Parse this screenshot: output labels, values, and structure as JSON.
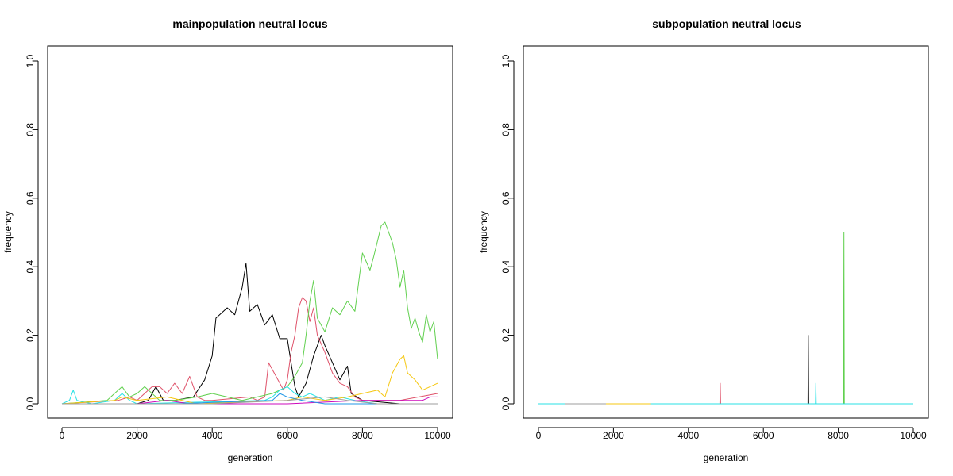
{
  "chart_data": [
    {
      "type": "line",
      "title": "mainpopulation neutral locus",
      "xlabel": "generation",
      "ylabel": "frequency",
      "xlim": [
        0,
        10000
      ],
      "ylim": [
        0,
        1
      ],
      "x_ticks": [
        0,
        2000,
        4000,
        6000,
        8000,
        10000
      ],
      "y_ticks": [
        0.0,
        0.2,
        0.4,
        0.6,
        0.8,
        1.0
      ],
      "grid": false,
      "series": [
        {
          "color": "#000000",
          "points": [
            [
              0,
              0
            ],
            [
              2000,
              0
            ],
            [
              2300,
              0.01
            ],
            [
              2500,
              0.05
            ],
            [
              2700,
              0.01
            ],
            [
              3000,
              0.01
            ],
            [
              3500,
              0.02
            ],
            [
              3800,
              0.07
            ],
            [
              4000,
              0.14
            ],
            [
              4100,
              0.25
            ],
            [
              4400,
              0.28
            ],
            [
              4600,
              0.26
            ],
            [
              4700,
              0.3
            ],
            [
              4800,
              0.34
            ],
            [
              4900,
              0.41
            ],
            [
              5000,
              0.27
            ],
            [
              5200,
              0.29
            ],
            [
              5400,
              0.23
            ],
            [
              5600,
              0.26
            ],
            [
              5800,
              0.19
            ],
            [
              6000,
              0.19
            ],
            [
              6100,
              0.12
            ],
            [
              6200,
              0.05
            ],
            [
              6300,
              0.02
            ],
            [
              6500,
              0.06
            ],
            [
              6700,
              0.14
            ],
            [
              6900,
              0.2
            ],
            [
              7000,
              0.17
            ],
            [
              7200,
              0.12
            ],
            [
              7400,
              0.07
            ],
            [
              7600,
              0.11
            ],
            [
              7700,
              0.03
            ],
            [
              8000,
              0.01
            ],
            [
              9000,
              0.0
            ],
            [
              10000,
              0.0
            ]
          ]
        },
        {
          "color": "#DF536B",
          "points": [
            [
              0,
              0
            ],
            [
              1500,
              0.01
            ],
            [
              1800,
              0.02
            ],
            [
              2000,
              0.01
            ],
            [
              2200,
              0.03
            ],
            [
              2400,
              0.05
            ],
            [
              2600,
              0.05
            ],
            [
              2800,
              0.03
            ],
            [
              3000,
              0.06
            ],
            [
              3200,
              0.03
            ],
            [
              3400,
              0.08
            ],
            [
              3600,
              0.02
            ],
            [
              3800,
              0.01
            ],
            [
              4000,
              0.01
            ],
            [
              5000,
              0.02
            ],
            [
              5200,
              0.01
            ],
            [
              5400,
              0.02
            ],
            [
              5500,
              0.12
            ],
            [
              5700,
              0.08
            ],
            [
              5900,
              0.04
            ],
            [
              6000,
              0.07
            ],
            [
              6100,
              0.15
            ],
            [
              6200,
              0.2
            ],
            [
              6300,
              0.28
            ],
            [
              6400,
              0.31
            ],
            [
              6500,
              0.3
            ],
            [
              6600,
              0.24
            ],
            [
              6700,
              0.28
            ],
            [
              6800,
              0.2
            ],
            [
              7000,
              0.15
            ],
            [
              7200,
              0.09
            ],
            [
              7400,
              0.06
            ],
            [
              7600,
              0.05
            ],
            [
              7800,
              0.02
            ],
            [
              8000,
              0.01
            ],
            [
              9000,
              0.01
            ],
            [
              9500,
              0.02
            ],
            [
              10000,
              0.03
            ]
          ]
        },
        {
          "color": "#61D04F",
          "points": [
            [
              0,
              0
            ],
            [
              1200,
              0.01
            ],
            [
              1400,
              0.03
            ],
            [
              1600,
              0.05
            ],
            [
              1800,
              0.02
            ],
            [
              2000,
              0.03
            ],
            [
              2200,
              0.05
            ],
            [
              2400,
              0.03
            ],
            [
              2600,
              0.01
            ],
            [
              3000,
              0.01
            ],
            [
              3600,
              0.02
            ],
            [
              4000,
              0.03
            ],
            [
              4400,
              0.02
            ],
            [
              4800,
              0.01
            ],
            [
              5200,
              0.02
            ],
            [
              5600,
              0.03
            ],
            [
              6000,
              0.05
            ],
            [
              6200,
              0.08
            ],
            [
              6400,
              0.12
            ],
            [
              6500,
              0.2
            ],
            [
              6600,
              0.3
            ],
            [
              6700,
              0.36
            ],
            [
              6800,
              0.25
            ],
            [
              7000,
              0.21
            ],
            [
              7200,
              0.28
            ],
            [
              7400,
              0.26
            ],
            [
              7600,
              0.3
            ],
            [
              7800,
              0.27
            ],
            [
              8000,
              0.44
            ],
            [
              8200,
              0.39
            ],
            [
              8300,
              0.43
            ],
            [
              8500,
              0.52
            ],
            [
              8600,
              0.53
            ],
            [
              8700,
              0.5
            ],
            [
              8800,
              0.47
            ],
            [
              8900,
              0.42
            ],
            [
              9000,
              0.34
            ],
            [
              9100,
              0.39
            ],
            [
              9200,
              0.28
            ],
            [
              9300,
              0.22
            ],
            [
              9400,
              0.25
            ],
            [
              9500,
              0.21
            ],
            [
              9600,
              0.18
            ],
            [
              9700,
              0.26
            ],
            [
              9800,
              0.21
            ],
            [
              9900,
              0.24
            ],
            [
              10000,
              0.13
            ]
          ]
        },
        {
          "color": "#28E2E5",
          "points": [
            [
              0,
              0
            ],
            [
              200,
              0.01
            ],
            [
              300,
              0.04
            ],
            [
              400,
              0.01
            ],
            [
              800,
              0.0
            ],
            [
              1400,
              0.01
            ],
            [
              1600,
              0.03
            ],
            [
              1800,
              0.01
            ],
            [
              2000,
              0.0
            ],
            [
              5400,
              0.01
            ],
            [
              5600,
              0.02
            ],
            [
              5800,
              0.04
            ],
            [
              6000,
              0.05
            ],
            [
              6200,
              0.03
            ],
            [
              6400,
              0.02
            ],
            [
              6600,
              0.03
            ],
            [
              7000,
              0.01
            ],
            [
              7400,
              0.02
            ],
            [
              7800,
              0.01
            ],
            [
              8400,
              0.0
            ],
            [
              10000,
              0.0
            ]
          ]
        },
        {
          "color": "#F5C710",
          "points": [
            [
              0,
              0
            ],
            [
              1400,
              0.01
            ],
            [
              1600,
              0.02
            ],
            [
              2000,
              0.01
            ],
            [
              2800,
              0.02
            ],
            [
              3200,
              0.01
            ],
            [
              3600,
              0.0
            ],
            [
              6000,
              0.01
            ],
            [
              6400,
              0.02
            ],
            [
              7000,
              0.01
            ],
            [
              7600,
              0.02
            ],
            [
              8000,
              0.03
            ],
            [
              8400,
              0.04
            ],
            [
              8600,
              0.02
            ],
            [
              8800,
              0.09
            ],
            [
              9000,
              0.13
            ],
            [
              9100,
              0.14
            ],
            [
              9200,
              0.09
            ],
            [
              9400,
              0.07
            ],
            [
              9600,
              0.04
            ],
            [
              9800,
              0.05
            ],
            [
              10000,
              0.06
            ]
          ]
        },
        {
          "color": "#CD0BBC",
          "points": [
            [
              0,
              0
            ],
            [
              2000,
              0.0
            ],
            [
              2800,
              0.01
            ],
            [
              3400,
              0.0
            ],
            [
              6000,
              0.0
            ],
            [
              8000,
              0.01
            ],
            [
              9000,
              0.01
            ],
            [
              9600,
              0.01
            ],
            [
              9800,
              0.02
            ],
            [
              10000,
              0.02
            ]
          ]
        },
        {
          "color": "#2297E6",
          "points": [
            [
              0,
              0
            ],
            [
              3000,
              0.0
            ],
            [
              5600,
              0.01
            ],
            [
              5800,
              0.03
            ],
            [
              6000,
              0.02
            ],
            [
              6400,
              0.01
            ],
            [
              7000,
              0.0
            ],
            [
              10000,
              0.0
            ]
          ]
        },
        {
          "color": "#9E9E9E",
          "points": [
            [
              0,
              0
            ],
            [
              4000,
              0.0
            ],
            [
              6000,
              0.01
            ],
            [
              7000,
              0.02
            ],
            [
              7600,
              0.01
            ],
            [
              8400,
              0.0
            ],
            [
              10000,
              0.0
            ]
          ]
        }
      ]
    },
    {
      "type": "line",
      "title": "subpopulation neutral locus",
      "xlabel": "generation",
      "ylabel": "frequency",
      "xlim": [
        0,
        10000
      ],
      "ylim": [
        0,
        1
      ],
      "x_ticks": [
        0,
        2000,
        4000,
        6000,
        8000,
        10000
      ],
      "y_ticks": [
        0.0,
        0.2,
        0.4,
        0.6,
        0.8,
        1.0
      ],
      "grid": false,
      "series": [
        {
          "color": "#000000",
          "points": [
            [
              0,
              0
            ],
            [
              7190,
              0
            ],
            [
              7200,
              0.2
            ],
            [
              7210,
              0
            ],
            [
              10000,
              0
            ]
          ]
        },
        {
          "color": "#DF536B",
          "points": [
            [
              0,
              0
            ],
            [
              4840,
              0
            ],
            [
              4850,
              0.06
            ],
            [
              4860,
              0
            ],
            [
              10000,
              0
            ]
          ]
        },
        {
          "color": "#61D04F",
          "points": [
            [
              0,
              0
            ],
            [
              8140,
              0
            ],
            [
              8150,
              0.5
            ],
            [
              8160,
              0
            ],
            [
              10000,
              0
            ]
          ]
        },
        {
          "color": "#28E2E5",
          "points": [
            [
              0,
              0
            ],
            [
              7390,
              0
            ],
            [
              7400,
              0.06
            ],
            [
              7410,
              0
            ],
            [
              10000,
              0
            ]
          ]
        },
        {
          "color": "#F5C710",
          "points": [
            [
              1500,
              0
            ],
            [
              3000,
              0
            ]
          ]
        },
        {
          "color": "#9E9E9E",
          "points": [
            [
              700,
              0
            ],
            [
              1800,
              0
            ]
          ]
        }
      ]
    }
  ]
}
